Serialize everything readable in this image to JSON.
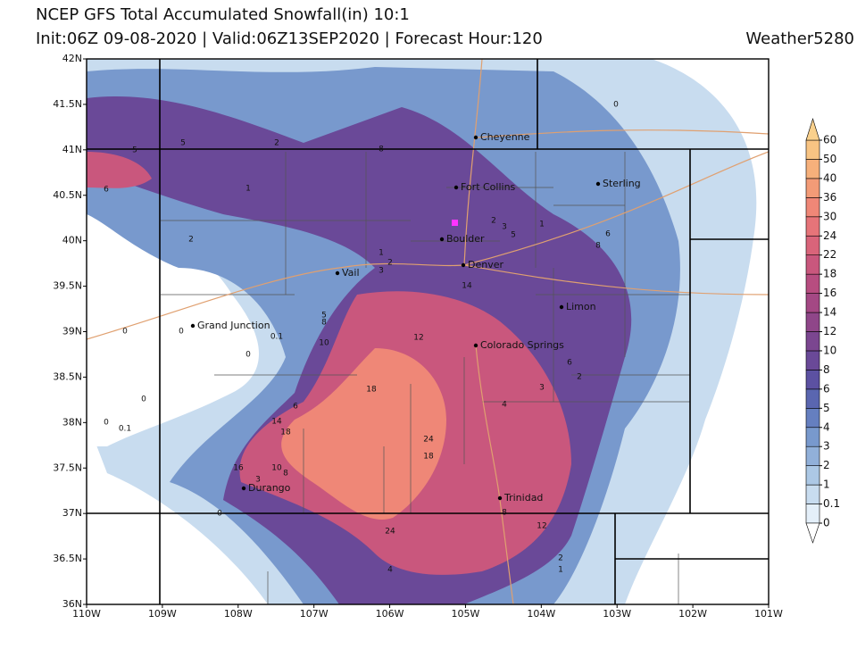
{
  "header": {
    "title": "NCEP GFS Total Accumulated Snowfall(in) 10:1",
    "subtitle": "Init:06Z 09-08-2020 | Valid:06Z13SEP2020 | Forecast Hour:120",
    "brand": "Weather5280"
  },
  "axes": {
    "lat_labels": [
      "42N",
      "41.5N",
      "41N",
      "40.5N",
      "40N",
      "39.5N",
      "39N",
      "38.5N",
      "38N",
      "37.5N",
      "37N",
      "36.5N",
      "36N"
    ],
    "lon_labels": [
      "110W",
      "109W",
      "108W",
      "107W",
      "106W",
      "105W",
      "104W",
      "103W",
      "102W",
      "101W"
    ]
  },
  "cities": [
    "Cheyenne",
    "Fort Collins",
    "Sterling",
    "Boulder",
    "Denver",
    "Vail",
    "Limon",
    "Grand Junction",
    "Colorado Springs",
    "Trinidad",
    "Durango"
  ],
  "contour_labels": [
    0,
    5,
    5,
    2,
    8,
    6,
    1,
    2,
    2,
    3,
    5,
    1,
    6,
    8,
    1,
    2,
    3,
    14,
    5,
    8,
    0,
    0,
    0.1,
    10,
    12,
    0,
    6,
    2,
    3,
    18,
    0,
    4,
    6,
    0,
    0.1,
    14,
    18,
    24,
    18,
    16,
    10,
    8,
    3,
    8,
    0,
    12,
    24,
    2,
    1,
    4
  ],
  "colorbar": {
    "levels": [
      0,
      0.1,
      1,
      2,
      3,
      4,
      5,
      6,
      8,
      10,
      12,
      14,
      16,
      18,
      22,
      24,
      30,
      36,
      40,
      50,
      60
    ],
    "colors": [
      "#e4eff9",
      "#c8dcef",
      "#acc8e5",
      "#91b0d9",
      "#7899cd",
      "#657fc0",
      "#5a66b0",
      "#5c51a2",
      "#6a4998",
      "#7b4690",
      "#8f4689",
      "#a44884",
      "#b74d80",
      "#c9577d",
      "#d9647a",
      "#e67479",
      "#ef8777",
      "#f39b77",
      "#f6b07b",
      "#f8c483"
    ],
    "under_color": "#ffffff",
    "over_color": "#f9d08c"
  }
}
